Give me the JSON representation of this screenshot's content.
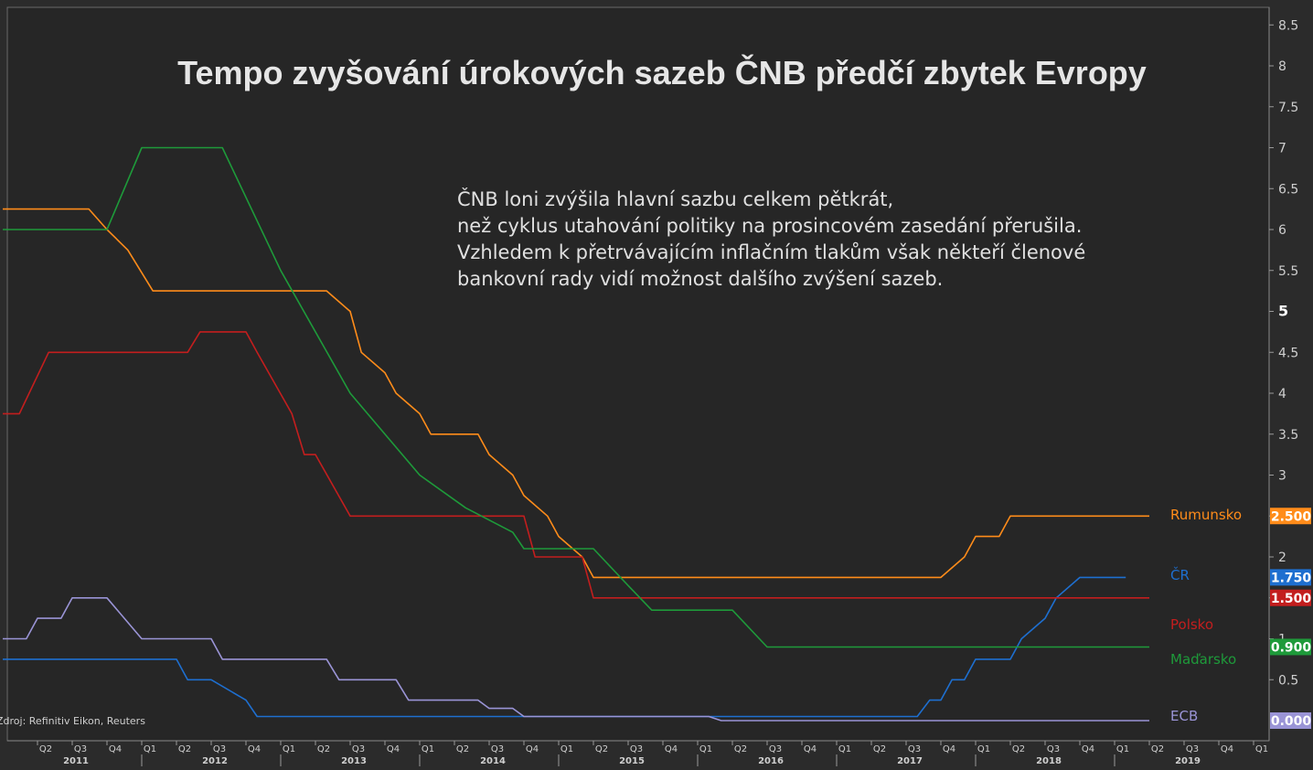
{
  "title": "Tempo zvyšování úrokových sazeb ČNB předčí zbytek Evropy",
  "annotation": [
    "ČNB loni zvýšila hlavní sazbu celkem pětkrát,",
    "než cyklus utahování politiky na prosincovém zasedání přerušila.",
    "Vzhledem k přetrvávajícím inflačním tlakům však někteří členové",
    "bankovní rady vidí možnost dalšího zvýšení sazeb."
  ],
  "source": "Zdroj: Refinitiv Eikon, Reuters",
  "chart_data": {
    "type": "line",
    "ylim": [
      -0.2,
      8.6
    ],
    "yticks": [
      "0.5",
      "1",
      "1.5",
      "2",
      "2.5",
      "3",
      "3.5",
      "4",
      "4.5",
      "5",
      "5.5",
      "6",
      "6.5",
      "7",
      "7.5",
      "8",
      "8.5"
    ],
    "x_range": [
      2011.0,
      2019.6
    ],
    "x_quarter_ticks": [
      {
        "x": 2011.25,
        "label": "Q2"
      },
      {
        "x": 2011.5,
        "label": "Q3"
      },
      {
        "x": 2011.75,
        "label": "Q4"
      },
      {
        "x": 2012.0,
        "label": "Q1"
      },
      {
        "x": 2012.25,
        "label": "Q2"
      },
      {
        "x": 2012.5,
        "label": "Q3"
      },
      {
        "x": 2012.75,
        "label": "Q4"
      },
      {
        "x": 2013.0,
        "label": "Q1"
      },
      {
        "x": 2013.25,
        "label": "Q2"
      },
      {
        "x": 2013.5,
        "label": "Q3"
      },
      {
        "x": 2013.75,
        "label": "Q4"
      },
      {
        "x": 2014.0,
        "label": "Q1"
      },
      {
        "x": 2014.25,
        "label": "Q2"
      },
      {
        "x": 2014.5,
        "label": "Q3"
      },
      {
        "x": 2014.75,
        "label": "Q4"
      },
      {
        "x": 2015.0,
        "label": "Q1"
      },
      {
        "x": 2015.25,
        "label": "Q2"
      },
      {
        "x": 2015.5,
        "label": "Q3"
      },
      {
        "x": 2015.75,
        "label": "Q4"
      },
      {
        "x": 2016.0,
        "label": "Q1"
      },
      {
        "x": 2016.25,
        "label": "Q2"
      },
      {
        "x": 2016.5,
        "label": "Q3"
      },
      {
        "x": 2016.75,
        "label": "Q4"
      },
      {
        "x": 2017.0,
        "label": "Q1"
      },
      {
        "x": 2017.25,
        "label": "Q2"
      },
      {
        "x": 2017.5,
        "label": "Q3"
      },
      {
        "x": 2017.75,
        "label": "Q4"
      },
      {
        "x": 2018.0,
        "label": "Q1"
      },
      {
        "x": 2018.25,
        "label": "Q2"
      },
      {
        "x": 2018.5,
        "label": "Q3"
      },
      {
        "x": 2018.75,
        "label": "Q4"
      },
      {
        "x": 2019.0,
        "label": "Q1"
      },
      {
        "x": 2019.25,
        "label": "Q2"
      },
      {
        "x": 2019.5,
        "label": "Q3"
      },
      {
        "x": 2019.75,
        "label": "Q4"
      },
      {
        "x": 2020.0,
        "label": "Q1"
      }
    ],
    "x_year_ticks": [
      {
        "x": 2011.5,
        "label": "2011"
      },
      {
        "x": 2012.5,
        "label": "2012"
      },
      {
        "x": 2013.5,
        "label": "2013"
      },
      {
        "x": 2014.5,
        "label": "2014"
      },
      {
        "x": 2015.5,
        "label": "2015"
      },
      {
        "x": 2016.5,
        "label": "2016"
      },
      {
        "x": 2017.5,
        "label": "2017"
      },
      {
        "x": 2018.5,
        "label": "2018"
      },
      {
        "x": 2019.5,
        "label": "2019"
      }
    ],
    "series": [
      {
        "name": "Rumunsko",
        "color": "#ff8c1a",
        "value_label": "2.500",
        "points": [
          [
            2011.0,
            6.25
          ],
          [
            2011.62,
            6.25
          ],
          [
            2011.75,
            6.0
          ],
          [
            2011.9,
            5.75
          ],
          [
            2012.08,
            5.25
          ],
          [
            2013.33,
            5.25
          ],
          [
            2013.5,
            5.0
          ],
          [
            2013.58,
            4.5
          ],
          [
            2013.75,
            4.25
          ],
          [
            2013.83,
            4.0
          ],
          [
            2014.0,
            3.75
          ],
          [
            2014.08,
            3.5
          ],
          [
            2014.42,
            3.5
          ],
          [
            2014.5,
            3.25
          ],
          [
            2014.67,
            3.0
          ],
          [
            2014.75,
            2.75
          ],
          [
            2014.92,
            2.5
          ],
          [
            2015.0,
            2.25
          ],
          [
            2015.17,
            2.0
          ],
          [
            2015.25,
            1.75
          ],
          [
            2017.75,
            1.75
          ],
          [
            2017.92,
            2.0
          ],
          [
            2018.0,
            2.25
          ],
          [
            2018.17,
            2.25
          ],
          [
            2018.25,
            2.5
          ],
          [
            2019.25,
            2.5
          ]
        ]
      },
      {
        "name": "ČR",
        "color": "#1e6fd0",
        "value_label": "1.750",
        "points": [
          [
            2011.0,
            0.75
          ],
          [
            2012.25,
            0.75
          ],
          [
            2012.33,
            0.5
          ],
          [
            2012.5,
            0.5
          ],
          [
            2012.75,
            0.25
          ],
          [
            2012.83,
            0.05
          ],
          [
            2017.58,
            0.05
          ],
          [
            2017.67,
            0.25
          ],
          [
            2017.75,
            0.25
          ],
          [
            2017.83,
            0.5
          ],
          [
            2017.92,
            0.5
          ],
          [
            2018.0,
            0.75
          ],
          [
            2018.25,
            0.75
          ],
          [
            2018.33,
            1.0
          ],
          [
            2018.5,
            1.25
          ],
          [
            2018.58,
            1.5
          ],
          [
            2018.75,
            1.75
          ],
          [
            2019.08,
            1.75
          ]
        ]
      },
      {
        "name": "Polsko",
        "color": "#c31e1e",
        "value_label": "1.500",
        "points": [
          [
            2011.0,
            3.75
          ],
          [
            2011.12,
            3.75
          ],
          [
            2011.33,
            4.5
          ],
          [
            2012.33,
            4.5
          ],
          [
            2012.42,
            4.75
          ],
          [
            2012.75,
            4.75
          ],
          [
            2012.83,
            4.5
          ],
          [
            2013.08,
            3.75
          ],
          [
            2013.17,
            3.25
          ],
          [
            2013.25,
            3.25
          ],
          [
            2013.5,
            2.5
          ],
          [
            2014.75,
            2.5
          ],
          [
            2014.83,
            2.0
          ],
          [
            2015.17,
            2.0
          ],
          [
            2015.25,
            1.5
          ],
          [
            2019.25,
            1.5
          ]
        ]
      },
      {
        "name": "Maďarsko",
        "color": "#1e9a3a",
        "value_label": "0.900",
        "points": [
          [
            2011.0,
            6.0
          ],
          [
            2011.75,
            6.0
          ],
          [
            2012.0,
            7.0
          ],
          [
            2012.58,
            7.0
          ],
          [
            2013.0,
            5.5
          ],
          [
            2013.5,
            4.0
          ],
          [
            2014.0,
            3.0
          ],
          [
            2014.33,
            2.6
          ],
          [
            2014.67,
            2.3
          ],
          [
            2014.75,
            2.1
          ],
          [
            2015.25,
            2.1
          ],
          [
            2015.5,
            1.65
          ],
          [
            2015.67,
            1.35
          ],
          [
            2016.25,
            1.35
          ],
          [
            2016.5,
            0.9
          ],
          [
            2019.25,
            0.9
          ]
        ]
      },
      {
        "name": "ECB",
        "color": "#9a94d6",
        "value_label": "0.000",
        "points": [
          [
            2011.0,
            1.0
          ],
          [
            2011.17,
            1.0
          ],
          [
            2011.25,
            1.25
          ],
          [
            2011.42,
            1.25
          ],
          [
            2011.5,
            1.5
          ],
          [
            2011.75,
            1.5
          ],
          [
            2012.0,
            1.0
          ],
          [
            2012.5,
            1.0
          ],
          [
            2012.58,
            0.75
          ],
          [
            2013.33,
            0.75
          ],
          [
            2013.42,
            0.5
          ],
          [
            2013.83,
            0.5
          ],
          [
            2013.92,
            0.25
          ],
          [
            2014.42,
            0.25
          ],
          [
            2014.5,
            0.15
          ],
          [
            2014.67,
            0.15
          ],
          [
            2014.75,
            0.05
          ],
          [
            2016.08,
            0.05
          ],
          [
            2016.17,
            0.0
          ],
          [
            2019.25,
            0.0
          ]
        ]
      }
    ]
  }
}
